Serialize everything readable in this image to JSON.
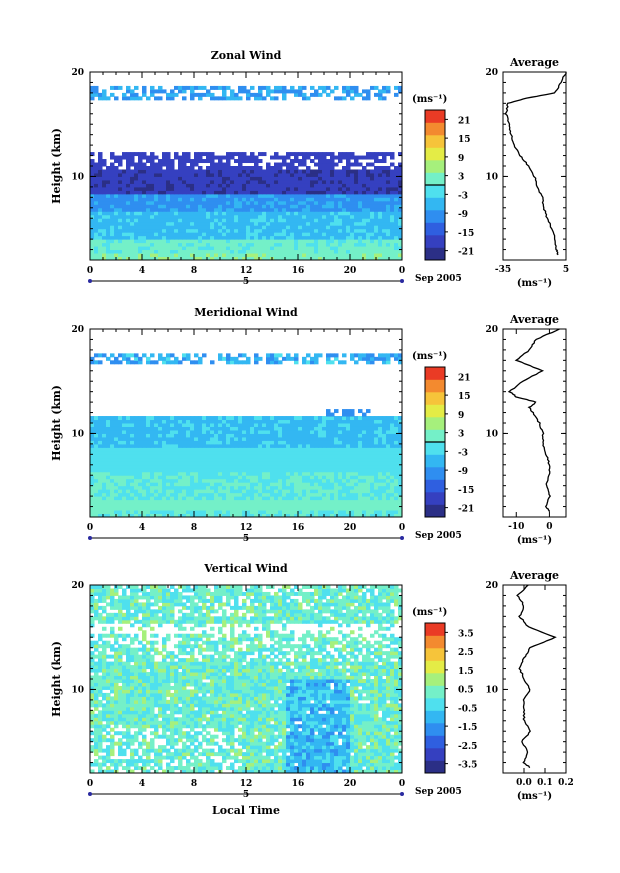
{
  "figure": {
    "date_label": "Sep 2005",
    "day_label": "5",
    "xlabel": "Local Time",
    "avg_title": "Average",
    "unit_label": "(ms⁻¹)",
    "avg_unit_label": "(ms⁻¹)"
  },
  "colorscale": [
    "#2b2f86",
    "#3540c0",
    "#2f5fe0",
    "#2f8ef0",
    "#33b7f2",
    "#4fe0ee",
    "#74f0c8",
    "#a6f07c",
    "#e4ec46",
    "#f6c43a",
    "#f38a2f",
    "#ea3b25"
  ],
  "chart_data": [
    {
      "type": "heatmap",
      "title": "Zonal Wind",
      "ylabel": "Height  (km)",
      "ylim": [
        2,
        20
      ],
      "y_ticks": [
        "10",
        "20"
      ],
      "xlim": [
        0,
        24
      ],
      "x_ticks": [
        "0",
        "4",
        "8",
        "12",
        "16",
        "20",
        "0"
      ],
      "colorbar": {
        "labels": [
          "21",
          "15",
          "9",
          "3",
          "-3",
          "-9",
          "-15",
          "-21"
        ],
        "range": [
          -24,
          24
        ],
        "zero_line": 0
      },
      "profile": {
        "title": "Average",
        "xlim": [
          -35,
          5
        ],
        "x_ticks": [
          "-35",
          "5"
        ],
        "y_ticks": [
          "10",
          "20"
        ],
        "heights": [
          2.5,
          3,
          4,
          5,
          6,
          7,
          8,
          9,
          10,
          11,
          12,
          13,
          14,
          15,
          16,
          17,
          17.5,
          18,
          19,
          20
        ],
        "values": [
          0,
          -1,
          -2,
          -4,
          -7,
          -9,
          -10,
          -13,
          -15,
          -19,
          -24,
          -28,
          -30,
          -31,
          -33,
          -32,
          -20,
          -2,
          2,
          5
        ]
      }
    },
    {
      "type": "heatmap",
      "title": "Meridional Wind",
      "ylabel": "Height  (km)",
      "ylim": [
        2,
        20
      ],
      "y_ticks": [
        "10",
        "20"
      ],
      "xlim": [
        0,
        24
      ],
      "x_ticks": [
        "0",
        "4",
        "8",
        "12",
        "16",
        "20",
        "0"
      ],
      "colorbar": {
        "labels": [
          "21",
          "15",
          "9",
          "3",
          "-3",
          "-9",
          "-15",
          "-21"
        ],
        "range": [
          -24,
          24
        ],
        "zero_line": 0
      },
      "profile": {
        "title": "Average",
        "xlim": [
          -14,
          5
        ],
        "x_ticks": [
          "-10",
          "0"
        ],
        "y_ticks": [
          "10",
          "20"
        ],
        "heights": [
          2.5,
          3,
          4,
          5,
          6,
          7,
          8,
          9,
          10,
          11,
          12,
          12.5,
          13,
          13.5,
          14,
          15,
          16,
          17,
          18,
          19,
          20
        ],
        "values": [
          0,
          -1,
          0,
          -1,
          0,
          0,
          -1,
          -2,
          -2,
          -3,
          -5,
          -6,
          -4,
          -10,
          -12,
          -8,
          -2,
          -10,
          -6,
          -4,
          3
        ]
      }
    },
    {
      "type": "heatmap",
      "title": "Vertical Wind",
      "ylabel": "Height  (km)",
      "ylim": [
        2,
        20
      ],
      "y_ticks": [
        "10",
        "20"
      ],
      "xlim": [
        0,
        24
      ],
      "x_ticks": [
        "0",
        "4",
        "8",
        "12",
        "16",
        "20",
        "0"
      ],
      "xlabel": "Local Time",
      "colorbar": {
        "labels": [
          "3.5",
          "2.5",
          "1.5",
          "0.5",
          "-0.5",
          "-1.5",
          "-2.5",
          "-3.5"
        ],
        "range": [
          -4,
          4
        ]
      },
      "profile": {
        "title": "Average",
        "xlim": [
          -0.1,
          0.2
        ],
        "x_ticks": [
          "0.0",
          "0.1",
          "0.2"
        ],
        "y_ticks": [
          "10",
          "20"
        ],
        "heights": [
          2.5,
          3,
          4,
          5,
          6,
          7,
          8,
          9,
          10,
          11,
          12,
          13,
          14,
          15,
          16,
          17,
          18,
          19,
          20
        ],
        "values": [
          0.03,
          0.0,
          0.02,
          -0.01,
          0.03,
          0.0,
          0.0,
          0.0,
          0.03,
          0.0,
          -0.02,
          0.0,
          0.03,
          0.15,
          0.02,
          -0.02,
          0.0,
          -0.03,
          0.02
        ]
      }
    }
  ]
}
